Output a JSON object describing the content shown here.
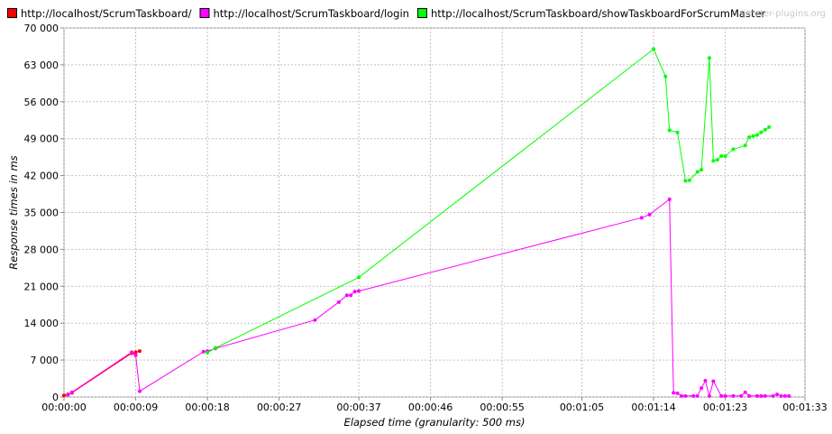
{
  "watermark": "jmeter-plugins.org",
  "chart_data": {
    "type": "line",
    "title": "",
    "xlabel": "Elapsed time (granularity: 500 ms)",
    "ylabel": "Response times in ms",
    "xlim": [
      0,
      93
    ],
    "ylim": [
      0,
      70000
    ],
    "x_ticks": [
      {
        "value": 0,
        "label": "00:00:00"
      },
      {
        "value": 9,
        "label": "00:00:09"
      },
      {
        "value": 18,
        "label": "00:00:18"
      },
      {
        "value": 27,
        "label": "00:00:27"
      },
      {
        "value": 37,
        "label": "00:00:37"
      },
      {
        "value": 46,
        "label": "00:00:46"
      },
      {
        "value": 55,
        "label": "00:00:55"
      },
      {
        "value": 65,
        "label": "00:01:05"
      },
      {
        "value": 74,
        "label": "00:01:14"
      },
      {
        "value": 83,
        "label": "00:01:23"
      },
      {
        "value": 93,
        "label": "00:01:33"
      }
    ],
    "y_ticks": [
      {
        "value": 0,
        "label": "0"
      },
      {
        "value": 7000,
        "label": "7 000"
      },
      {
        "value": 14000,
        "label": "14 000"
      },
      {
        "value": 21000,
        "label": "21 000"
      },
      {
        "value": 28000,
        "label": "28 000"
      },
      {
        "value": 35000,
        "label": "35 000"
      },
      {
        "value": 42000,
        "label": "42 000"
      },
      {
        "value": 49000,
        "label": "49 000"
      },
      {
        "value": 56000,
        "label": "56 000"
      },
      {
        "value": 63000,
        "label": "63 000"
      },
      {
        "value": 70000,
        "label": "70 000"
      }
    ],
    "grid": true,
    "legend_position": "top-left",
    "series": [
      {
        "name": "http://localhost/ScrumTaskboard/",
        "color": "#ff0000",
        "points": [
          [
            0,
            300
          ],
          [
            0.5,
            500
          ],
          [
            1,
            800
          ],
          [
            8.5,
            8300
          ],
          [
            9,
            8500
          ],
          [
            9.5,
            8700
          ]
        ]
      },
      {
        "name": "http://localhost/ScrumTaskboard/login",
        "color": "#ff00ff",
        "points": [
          [
            0.5,
            400
          ],
          [
            1,
            900
          ],
          [
            8.5,
            8500
          ],
          [
            9,
            7900
          ],
          [
            9.5,
            1100
          ],
          [
            17.5,
            8600
          ],
          [
            18,
            8700
          ],
          [
            19,
            9200
          ],
          [
            31.5,
            14600
          ],
          [
            34.5,
            18000
          ],
          [
            35.5,
            19300
          ],
          [
            36,
            19300
          ],
          [
            36.5,
            20000
          ],
          [
            37,
            20100
          ],
          [
            72.5,
            34000
          ],
          [
            73.5,
            34600
          ],
          [
            76,
            37500
          ],
          [
            76.5,
            800
          ],
          [
            77,
            700
          ],
          [
            77.5,
            200
          ],
          [
            78,
            200
          ],
          [
            79,
            200
          ],
          [
            79.5,
            200
          ],
          [
            80,
            1700
          ],
          [
            80.5,
            3100
          ],
          [
            81,
            200
          ],
          [
            81.5,
            3000
          ],
          [
            82.5,
            200
          ],
          [
            83,
            200
          ],
          [
            84,
            200
          ],
          [
            85,
            200
          ],
          [
            85.5,
            900
          ],
          [
            86,
            200
          ],
          [
            87,
            200
          ],
          [
            87.5,
            200
          ],
          [
            88,
            200
          ],
          [
            89,
            200
          ],
          [
            89.5,
            500
          ],
          [
            90,
            200
          ],
          [
            90.5,
            200
          ],
          [
            91,
            200
          ]
        ]
      },
      {
        "name": "http://localhost/ScrumTaskboard/showTaskboardForScrumMaster",
        "color": "#00ff00",
        "points": [
          [
            18,
            8400
          ],
          [
            19,
            9300
          ],
          [
            37,
            22700
          ],
          [
            74,
            66000
          ],
          [
            75.5,
            60800
          ],
          [
            76,
            50600
          ],
          [
            77,
            50200
          ],
          [
            78,
            41000
          ],
          [
            78.5,
            41100
          ],
          [
            79.5,
            42700
          ],
          [
            80,
            43100
          ],
          [
            81,
            64300
          ],
          [
            81.5,
            44800
          ],
          [
            82,
            45000
          ],
          [
            82.5,
            45700
          ],
          [
            83,
            45700
          ],
          [
            84,
            47000
          ],
          [
            85.5,
            47700
          ],
          [
            86,
            49300
          ],
          [
            86.5,
            49500
          ],
          [
            87,
            49700
          ],
          [
            87.5,
            50200
          ],
          [
            88,
            50700
          ],
          [
            88.5,
            51200
          ]
        ]
      }
    ]
  }
}
